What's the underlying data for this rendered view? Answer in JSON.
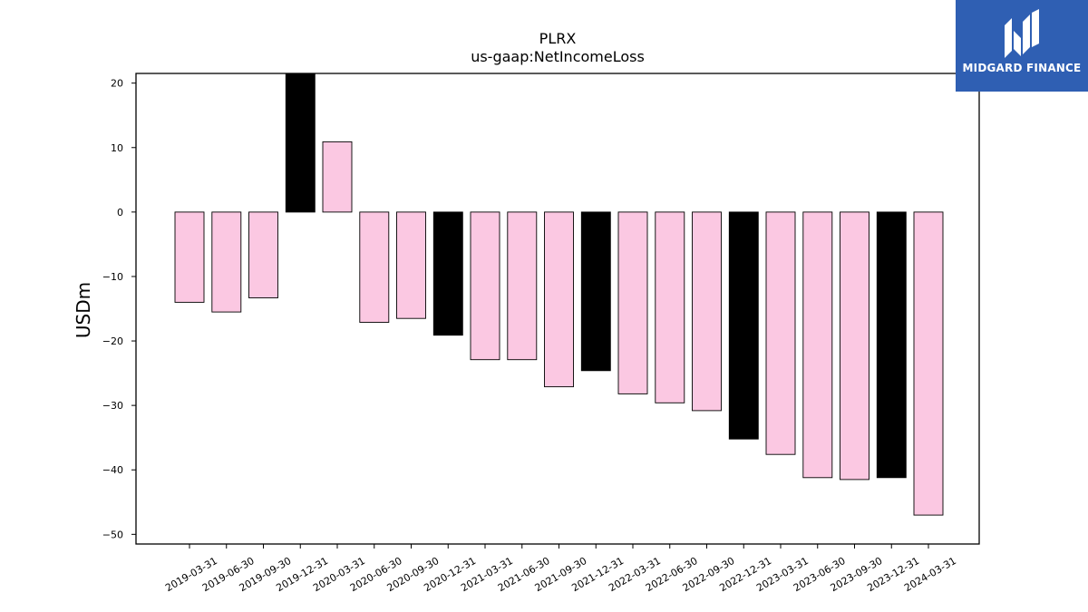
{
  "chart_data": {
    "type": "bar",
    "title": "PLRX",
    "subtitle": "us-gaap:NetIncomeLoss",
    "ylabel": "USDm",
    "xlabel": "",
    "ylim": [
      -51.5,
      21.5
    ],
    "yticks": [
      20,
      10,
      0,
      -10,
      -20,
      -30,
      -40,
      -50
    ],
    "ytick_labels": [
      "20",
      "10",
      "0",
      "−10",
      "−20",
      "−30",
      "−40",
      "−50"
    ],
    "categories": [
      "2019-03-31",
      "2019-06-30",
      "2019-09-30",
      "2019-12-31",
      "2020-03-31",
      "2020-06-30",
      "2020-09-30",
      "2020-12-31",
      "2021-03-31",
      "2021-06-30",
      "2021-09-30",
      "2021-12-31",
      "2022-03-31",
      "2022-06-30",
      "2022-09-30",
      "2022-12-31",
      "2023-03-31",
      "2023-06-30",
      "2023-09-30",
      "2023-12-31",
      "2024-03-31"
    ],
    "values": [
      -14.0,
      -15.5,
      -13.3,
      21.5,
      10.9,
      -17.1,
      -16.5,
      -19.1,
      -22.9,
      -22.9,
      -27.1,
      -24.6,
      -28.2,
      -29.6,
      -30.8,
      -35.2,
      -37.6,
      -41.2,
      -41.5,
      -41.2,
      -47.0
    ],
    "colors": [
      "#fbc8e2",
      "#fbc8e2",
      "#fbc8e2",
      "#000000",
      "#fbc8e2",
      "#fbc8e2",
      "#fbc8e2",
      "#000000",
      "#fbc8e2",
      "#fbc8e2",
      "#fbc8e2",
      "#000000",
      "#fbc8e2",
      "#fbc8e2",
      "#fbc8e2",
      "#000000",
      "#fbc8e2",
      "#fbc8e2",
      "#fbc8e2",
      "#000000",
      "#fbc8e2"
    ],
    "grid": false
  },
  "brand": {
    "name": "MIDGARD FINANCE",
    "color": "#2f5fb3"
  }
}
